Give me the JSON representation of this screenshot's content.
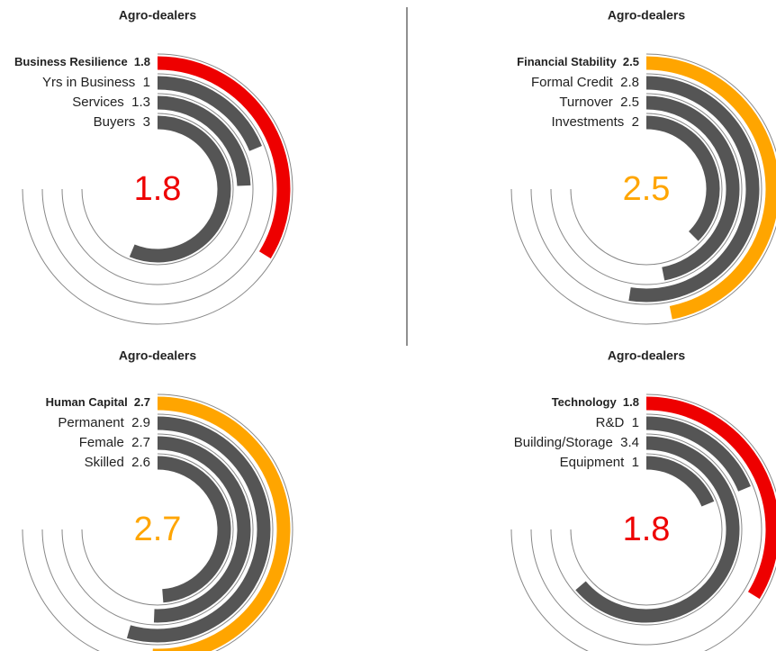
{
  "chart_data": [
    {
      "type": "radial_bar",
      "title": "Agro-dealers",
      "categories": [
        "Business Resilience",
        "Yrs in Business",
        "Services",
        "Buyers"
      ],
      "values": [
        1.8,
        1,
        1.3,
        3
      ],
      "colors": [
        "#ee0000",
        "#555555",
        "#555555",
        "#555555"
      ],
      "ylim": [
        0,
        4
      ]
    },
    {
      "type": "radial_bar",
      "title": "Agro-dealers",
      "categories": [
        "Financial Stability",
        "Formal Credit",
        "Turnover",
        "Investments"
      ],
      "values": [
        2.5,
        2.8,
        2.5,
        2
      ],
      "colors": [
        "#ffa500",
        "#555555",
        "#555555",
        "#555555"
      ],
      "ylim": [
        0,
        4
      ]
    },
    {
      "type": "radial_bar",
      "title": "Agro-dealers",
      "categories": [
        "Human Capital",
        "Permanent",
        "Female",
        "Skilled"
      ],
      "values": [
        2.7,
        2.9,
        2.7,
        2.6
      ],
      "colors": [
        "#ffa500",
        "#555555",
        "#555555",
        "#555555"
      ],
      "ylim": [
        0,
        4
      ]
    },
    {
      "type": "radial_bar",
      "title": "Agro-dealers",
      "categories": [
        "Technology",
        "R&D",
        "Building/Storage",
        "Equipment"
      ],
      "values": [
        1.8,
        1,
        3.4,
        1
      ],
      "colors": [
        "#ee0000",
        "#555555",
        "#555555",
        "#555555"
      ],
      "ylim": [
        0,
        4
      ]
    }
  ]
}
